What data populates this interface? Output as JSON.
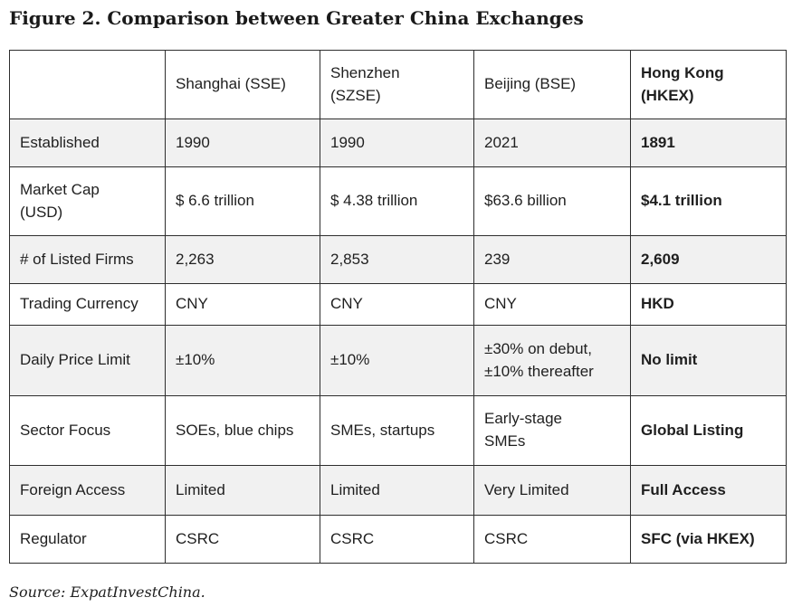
{
  "title": "Figure 2. Comparison between Greater China Exchanges",
  "source": "Source: ExpatInvestChina.",
  "colors": {
    "row_stripe": "#f1f1f1",
    "border": "#2e2e2e",
    "text": "#1f1f1f",
    "background": "#ffffff"
  },
  "table": {
    "columns": [
      "",
      "Shanghai (SSE)",
      "Shenzhen\n(SZSE)",
      "Beijing (BSE)",
      "Hong Kong\n(HKEX)"
    ],
    "rows": [
      {
        "label": "Established",
        "values": [
          "1990",
          "1990",
          "2021",
          "1891"
        ]
      },
      {
        "label": "Market Cap\n(USD)",
        "values": [
          "$ 6.6 trillion",
          "$ 4.38 trillion",
          "$63.6 billion",
          "$4.1 trillion"
        ]
      },
      {
        "label": "# of Listed Firms",
        "values": [
          "2,263",
          "2,853",
          "239",
          "2,609"
        ]
      },
      {
        "label": "Trading Currency",
        "values": [
          "CNY",
          "CNY",
          "CNY",
          "HKD"
        ]
      },
      {
        "label": "Daily Price Limit",
        "values": [
          "±10%",
          "±10%",
          "±30% on debut,\n±10% thereafter",
          "No limit"
        ]
      },
      {
        "label": "Sector Focus",
        "values": [
          "SOEs, blue chips",
          "SMEs, startups",
          "Early-stage\nSMEs",
          "Global Listing"
        ]
      },
      {
        "label": "Foreign Access",
        "values": [
          "Limited",
          "Limited",
          "Very Limited",
          "Full Access"
        ]
      },
      {
        "label": "Regulator",
        "values": [
          "CSRC",
          "CSRC",
          "CSRC",
          "SFC (via HKEX)"
        ]
      }
    ]
  }
}
